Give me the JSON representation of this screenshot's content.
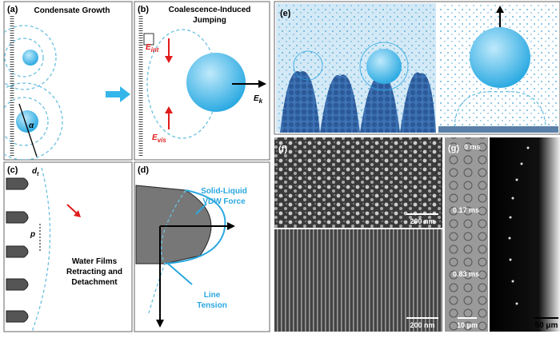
{
  "panels": {
    "a": {
      "label": "(a)",
      "title": "Condensate Growth",
      "angle": "α"
    },
    "b": {
      "label": "(b)",
      "title": [
        "Coalescence-Induced",
        "Jumping"
      ],
      "e_int": {
        "symbol": "E",
        "subscript": "int"
      },
      "e_vis": {
        "symbol": "E",
        "subscript": "vis"
      },
      "e_k": {
        "symbol": "E",
        "subscript": "k"
      }
    },
    "c": {
      "label": "(c)",
      "diameter": {
        "symbol": "d",
        "subscript": "t"
      },
      "pitch": "p",
      "caption": [
        "Water Films",
        "Retracting and",
        "Detachment"
      ]
    },
    "d": {
      "label": "(d)",
      "force": [
        "Solid-Liquid",
        "VDW Force"
      ],
      "tension": [
        "Line",
        "Tension"
      ]
    },
    "e": {
      "label": "(e)"
    },
    "f": {
      "label": "(f)",
      "scale_top": "200 nm",
      "scale_bottom": "200 nm"
    },
    "g": {
      "label": "(g)",
      "times": [
        "0 ms",
        "0.17 ms",
        "0.83 ms"
      ],
      "scale_left": "10 μm",
      "scale_right": "50 μm"
    }
  }
}
